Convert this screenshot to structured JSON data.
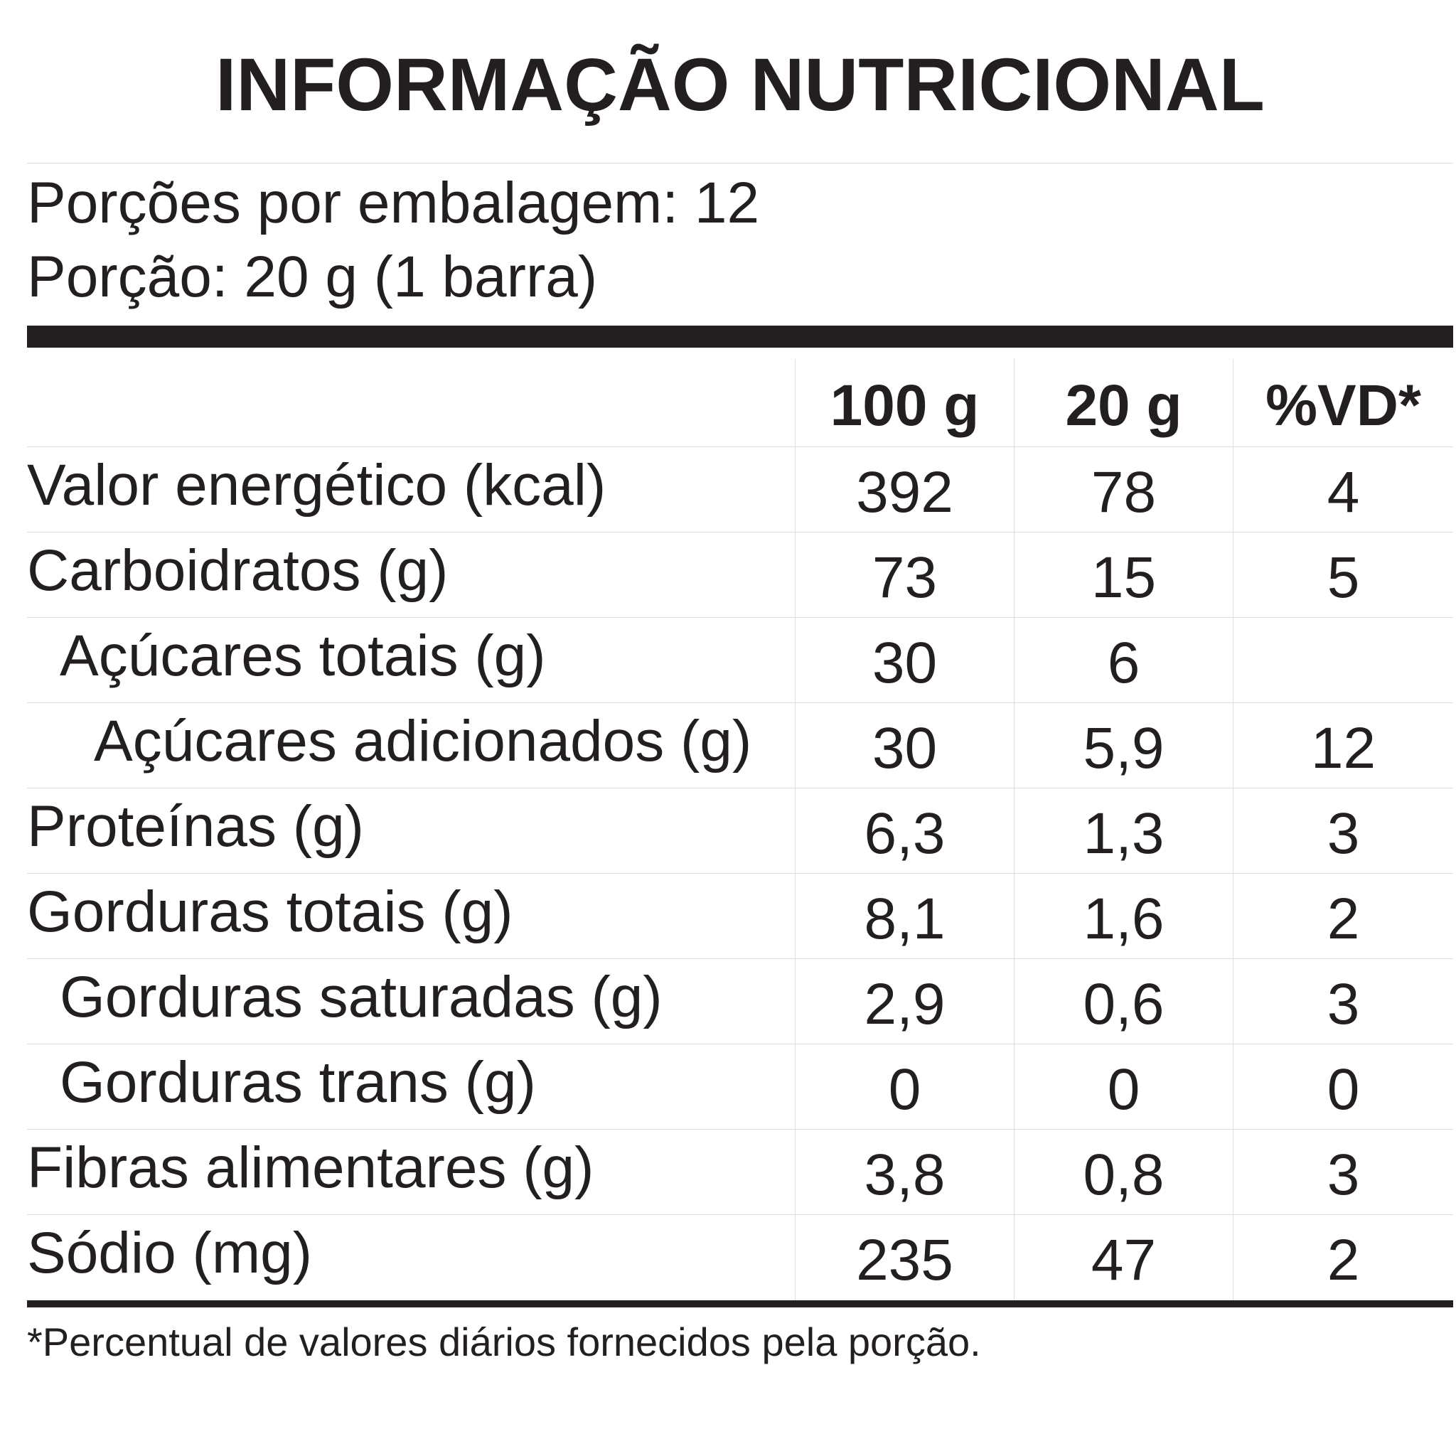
{
  "title": "INFORMAÇÃO NUTRICIONAL",
  "serving": {
    "per_package": "Porções por embalagem: 12",
    "portion": "Porção: 20 g (1 barra)"
  },
  "table": {
    "headers": [
      "",
      "100 g",
      "20 g",
      "%VD*"
    ],
    "rows": [
      {
        "name": "Valor energético (kcal)",
        "v100": "392",
        "v20": "78",
        "vd": "4",
        "indent": 0
      },
      {
        "name": "Carboidratos (g)",
        "v100": "73",
        "v20": "15",
        "vd": "5",
        "indent": 0
      },
      {
        "name": "Açúcares totais (g)",
        "v100": "30",
        "v20": "6",
        "vd": "",
        "indent": 1
      },
      {
        "name": "Açúcares adicionados (g)",
        "v100": "30",
        "v20": "5,9",
        "vd": "12",
        "indent": 2
      },
      {
        "name": "Proteínas (g)",
        "v100": "6,3",
        "v20": "1,3",
        "vd": "3",
        "indent": 0
      },
      {
        "name": "Gorduras totais (g)",
        "v100": "8,1",
        "v20": "1,6",
        "vd": "2",
        "indent": 0
      },
      {
        "name": "Gorduras saturadas (g)",
        "v100": "2,9",
        "v20": "0,6",
        "vd": "3",
        "indent": 1
      },
      {
        "name": "Gorduras trans (g)",
        "v100": "0",
        "v20": "0",
        "vd": "0",
        "indent": 1
      },
      {
        "name": "Fibras alimentares (g)",
        "v100": "3,8",
        "v20": "0,8",
        "vd": "3",
        "indent": 0
      },
      {
        "name": "Sódio (mg)",
        "v100": "235",
        "v20": "47",
        "vd": "2",
        "indent": 0
      }
    ]
  },
  "footnote": "*Percentual de valores diários fornecidos pela porção.",
  "colors": {
    "text": "#231f20",
    "rule": "#231f20",
    "grid": "#dedede",
    "background": "#ffffff"
  }
}
